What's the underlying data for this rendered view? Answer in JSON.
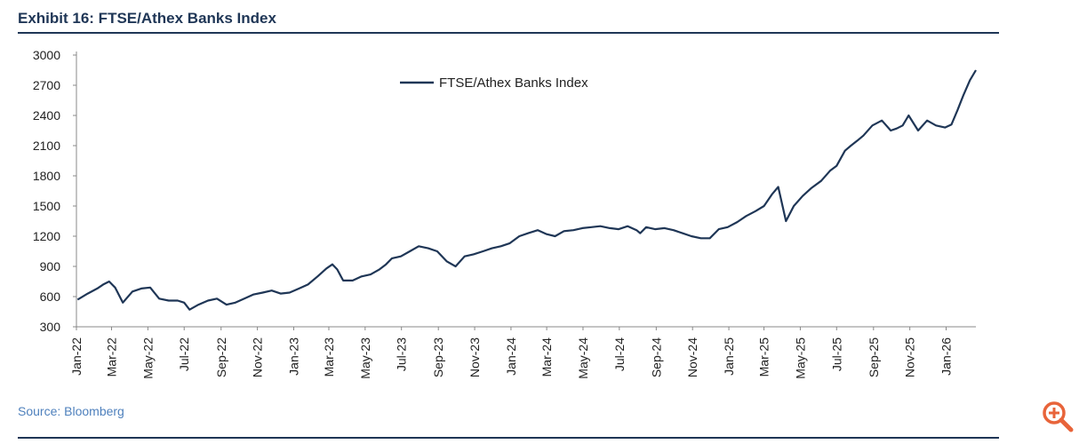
{
  "exhibit": {
    "title": "Exhibit 16: FTSE/Athex Banks Index"
  },
  "source": "Source: Bloomberg",
  "icons": {
    "zoom": "zoom-in-icon"
  },
  "colors": {
    "line": "#1f3656",
    "title": "#1f3656",
    "source": "#4f81bd",
    "zoom": "#e8643a"
  },
  "chart_data": {
    "type": "line",
    "title": "",
    "xlabel": "",
    "ylabel": "",
    "ylim": [
      300,
      3000
    ],
    "yticks": [
      3000,
      2700,
      2400,
      2100,
      1800,
      1500,
      1200,
      900,
      600,
      300
    ],
    "xticks": [
      "Jan-22",
      "Mar-22",
      "May-22",
      "Jul-22",
      "Sep-22",
      "Nov-22",
      "Jan-23",
      "Mar-23",
      "May-23",
      "Jul-23",
      "Sep-23",
      "Nov-23",
      "Jan-24",
      "Mar-24",
      "May-24",
      "Jul-24",
      "Sep-24",
      "Nov-24",
      "Jan-25",
      "Mar-25",
      "May-25",
      "Jul-25",
      "Sep-25",
      "Nov-25",
      "Jan-26"
    ],
    "legend": {
      "position": "top-center"
    },
    "grid": false,
    "series": [
      {
        "name": "FTSE/Athex Banks Index",
        "x": [
          "2022-01-03",
          "2022-01-20",
          "2022-02-05",
          "2022-02-15",
          "2022-02-25",
          "2022-03-07",
          "2022-03-20",
          "2022-04-05",
          "2022-04-20",
          "2022-05-05",
          "2022-05-20",
          "2022-06-05",
          "2022-06-20",
          "2022-07-01",
          "2022-07-10",
          "2022-07-25",
          "2022-08-10",
          "2022-08-25",
          "2022-09-10",
          "2022-09-25",
          "2022-10-10",
          "2022-10-25",
          "2022-11-10",
          "2022-11-25",
          "2022-12-10",
          "2022-12-25",
          "2023-01-10",
          "2023-01-25",
          "2023-02-10",
          "2023-02-25",
          "2023-03-07",
          "2023-03-15",
          "2023-03-25",
          "2023-04-10",
          "2023-04-25",
          "2023-05-10",
          "2023-05-25",
          "2023-06-05",
          "2023-06-15",
          "2023-06-30",
          "2023-07-15",
          "2023-07-30",
          "2023-08-15",
          "2023-08-30",
          "2023-09-15",
          "2023-09-30",
          "2023-10-15",
          "2023-10-30",
          "2023-11-15",
          "2023-11-30",
          "2023-12-15",
          "2023-12-30",
          "2024-01-15",
          "2024-01-30",
          "2024-02-15",
          "2024-03-01",
          "2024-03-15",
          "2024-03-30",
          "2024-04-15",
          "2024-04-30",
          "2024-05-15",
          "2024-05-30",
          "2024-06-15",
          "2024-06-30",
          "2024-07-15",
          "2024-07-30",
          "2024-08-05",
          "2024-08-15",
          "2024-08-30",
          "2024-09-15",
          "2024-09-30",
          "2024-10-15",
          "2024-10-30",
          "2024-11-15",
          "2024-11-30",
          "2024-12-15",
          "2024-12-30",
          "2025-01-15",
          "2025-01-30",
          "2025-02-15",
          "2025-03-01",
          "2025-03-15",
          "2025-03-25",
          "2025-04-07",
          "2025-04-20",
          "2025-05-05",
          "2025-05-20",
          "2025-06-05",
          "2025-06-20",
          "2025-07-01",
          "2025-07-15",
          "2025-07-25",
          "2025-08-05",
          "2025-08-15",
          "2025-08-30",
          "2025-09-15",
          "2025-09-30",
          "2025-10-10",
          "2025-10-20",
          "2025-10-30",
          "2025-11-15",
          "2025-11-30",
          "2025-12-15",
          "2025-12-30",
          "2026-01-10",
          "2026-01-20",
          "2026-01-30",
          "2026-02-10",
          "2026-02-20"
        ],
        "values": [
          570,
          630,
          680,
          720,
          750,
          690,
          540,
          650,
          680,
          690,
          580,
          560,
          560,
          540,
          470,
          520,
          560,
          580,
          520,
          540,
          580,
          620,
          640,
          660,
          630,
          640,
          680,
          720,
          800,
          880,
          920,
          870,
          760,
          760,
          800,
          820,
          870,
          920,
          980,
          1000,
          1050,
          1100,
          1080,
          1050,
          950,
          900,
          1000,
          1020,
          1050,
          1080,
          1100,
          1130,
          1200,
          1230,
          1260,
          1220,
          1200,
          1250,
          1260,
          1280,
          1290,
          1300,
          1280,
          1270,
          1300,
          1260,
          1230,
          1290,
          1270,
          1280,
          1260,
          1230,
          1200,
          1180,
          1180,
          1270,
          1290,
          1340,
          1400,
          1450,
          1500,
          1620,
          1690,
          1350,
          1500,
          1600,
          1680,
          1750,
          1850,
          1900,
          2050,
          2100,
          2150,
          2200,
          2300,
          2350,
          2250,
          2270,
          2300,
          2400,
          2250,
          2350,
          2300,
          2280,
          2310,
          2450,
          2600,
          2750,
          2850
        ]
      }
    ]
  }
}
